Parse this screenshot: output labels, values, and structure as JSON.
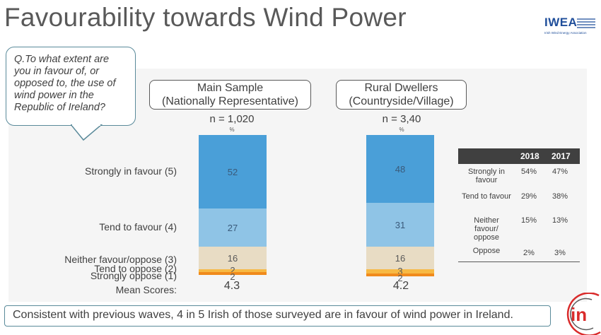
{
  "title": "Favourability towards Wind Power",
  "logo": {
    "text": "IWEA",
    "subtitle": "Irish Wind Energy Association"
  },
  "question": "Q.To what extent are you in favour of, or opposed to, the use of wind power in the Republic of Ireland?",
  "samples": [
    {
      "line1": "Main Sample",
      "line2": "(Nationally Representative)",
      "n": "n = 1,020",
      "pct": "%",
      "mean": "4.3"
    },
    {
      "line1": "Rural Dwellers",
      "line2": "(Countryside/Village)",
      "n": "n = 3,40",
      "pct": "%",
      "mean": "4.2"
    }
  ],
  "category_labels": [
    "Strongly in favour (5)",
    "Tend to favour (4)",
    "Neither favour/oppose (3)",
    "Tend to oppose (2)",
    "Strongly oppose (1)"
  ],
  "mean_label": "Mean Scores:",
  "chart_data": {
    "type": "bar",
    "stacked": true,
    "unit": "%",
    "categories": [
      "Main Sample",
      "Rural Dwellers"
    ],
    "series": [
      {
        "name": "Strongly in favour (5)",
        "values": [
          52,
          48
        ],
        "color": "#4a9fd8"
      },
      {
        "name": "Tend to favour (4)",
        "values": [
          27,
          31
        ],
        "color": "#8fc4e6"
      },
      {
        "name": "Neither favour/oppose (3)",
        "values": [
          16,
          16
        ],
        "color": "#e8dcc4"
      },
      {
        "name": "Tend to oppose (2)",
        "values": [
          2,
          3
        ],
        "color": "#f7b944"
      },
      {
        "name": "Strongly oppose (1)",
        "values": [
          2,
          2
        ],
        "color": "#f08a1c"
      }
    ]
  },
  "table": {
    "headers": [
      "",
      "2018",
      "2017"
    ],
    "rows": [
      {
        "label": "Strongly in favour",
        "v2018": "54%",
        "v2017": "47%"
      },
      {
        "label": "Tend to favour",
        "v2018": "29%",
        "v2017": "38%"
      },
      {
        "label": "Neither favour/ oppose",
        "v2018": "15%",
        "v2017": "13%"
      },
      {
        "label": "Oppose",
        "v2018": "2%",
        "v2017": "3%"
      }
    ]
  },
  "footer": "Consistent with previous waves, 4 in 5 Irish of those surveyed are in favour of wind power in Ireland.",
  "brand_text": "in"
}
